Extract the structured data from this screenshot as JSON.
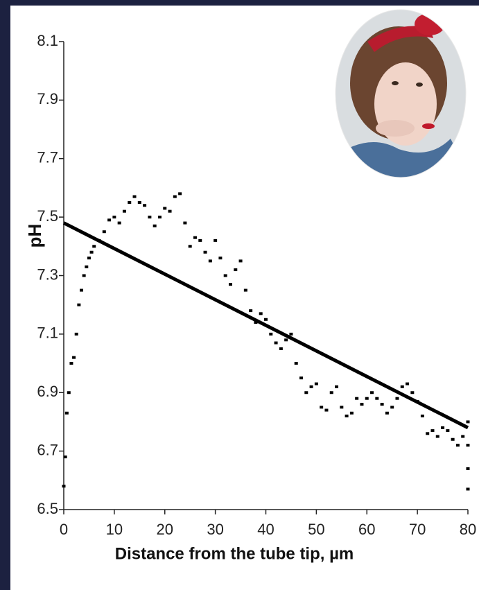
{
  "chart_data": {
    "type": "scatter",
    "xlabel": "Distance from the tube tip, µm",
    "ylabel": "pH",
    "xlim": [
      0,
      80
    ],
    "ylim": [
      6.5,
      8.1
    ],
    "xticks": [
      0,
      10,
      20,
      30,
      40,
      50,
      60,
      70,
      80
    ],
    "yticks": [
      6.5,
      6.7,
      6.9,
      7.1,
      7.3,
      7.5,
      7.7,
      7.9,
      8.1
    ],
    "series": [
      {
        "type": "scatter",
        "color": "#000000",
        "x": [
          0,
          0.3,
          0.6,
          1,
          1.5,
          2,
          2.5,
          3,
          3.5,
          4,
          4.5,
          5,
          5.5,
          6,
          7,
          8,
          9,
          10,
          11,
          12,
          13,
          14,
          15,
          16,
          17,
          18,
          19,
          20,
          21,
          22,
          23,
          24,
          25,
          26,
          27,
          28,
          29,
          30,
          31,
          32,
          33,
          34,
          35,
          36,
          37,
          38,
          39,
          40,
          41,
          42,
          43,
          44,
          45,
          46,
          47,
          48,
          49,
          50,
          51,
          52,
          53,
          54,
          55,
          56,
          57,
          58,
          59,
          60,
          61,
          62,
          63,
          64,
          65,
          66,
          67,
          68,
          69,
          70,
          71,
          72,
          73,
          74,
          75,
          76,
          77,
          78,
          79,
          80,
          80,
          80,
          80
        ],
        "values": [
          6.58,
          6.68,
          6.83,
          6.9,
          7.0,
          7.02,
          7.1,
          7.2,
          7.25,
          7.3,
          7.33,
          7.36,
          7.38,
          7.4,
          7.42,
          7.45,
          7.49,
          7.5,
          7.48,
          7.52,
          7.55,
          7.57,
          7.55,
          7.54,
          7.5,
          7.47,
          7.5,
          7.53,
          7.52,
          7.57,
          7.58,
          7.48,
          7.4,
          7.43,
          7.42,
          7.38,
          7.35,
          7.42,
          7.36,
          7.3,
          7.27,
          7.32,
          7.35,
          7.25,
          7.18,
          7.14,
          7.17,
          7.15,
          7.1,
          7.07,
          7.05,
          7.08,
          7.1,
          7.0,
          6.95,
          6.9,
          6.92,
          6.93,
          6.85,
          6.84,
          6.9,
          6.92,
          6.85,
          6.82,
          6.83,
          6.88,
          6.86,
          6.88,
          6.9,
          6.88,
          6.86,
          6.83,
          6.85,
          6.88,
          6.92,
          6.93,
          6.9,
          6.87,
          6.82,
          6.76,
          6.77,
          6.75,
          6.78,
          6.77,
          6.74,
          6.72,
          6.75,
          6.8,
          6.72,
          6.64,
          6.57
        ]
      },
      {
        "type": "line",
        "color": "#000000",
        "x": [
          0,
          80
        ],
        "values": [
          7.48,
          6.78
        ]
      }
    ]
  }
}
